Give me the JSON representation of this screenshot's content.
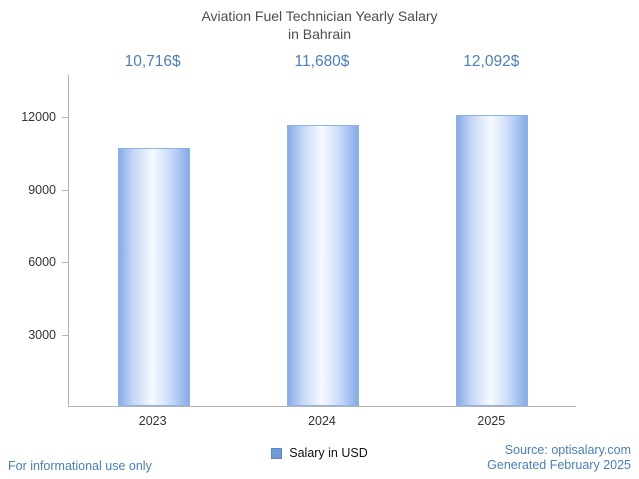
{
  "title": {
    "line1": "Aviation Fuel Technician Yearly Salary",
    "line2": "in Bahrain"
  },
  "chart_data": {
    "type": "bar",
    "title": "Aviation Fuel Technician Yearly Salary in Bahrain",
    "categories": [
      "2023",
      "2024",
      "2025"
    ],
    "values": [
      10716,
      11680,
      12092
    ],
    "value_labels": [
      "10,716$",
      "11,680$",
      "12,092$"
    ],
    "series_name": "Salary in USD",
    "xlabel": "",
    "ylabel": "",
    "ylim": [
      0,
      13750
    ],
    "yticks": [
      3000,
      6000,
      9000,
      12000
    ],
    "grid": false,
    "legend_position": "bottom"
  },
  "legend": {
    "label": "Salary in USD"
  },
  "footer": {
    "left": "For informational use only",
    "source": "Source: optisalary.com",
    "generated": "Generated February 2025"
  },
  "colors": {
    "accent_text": "#4a7fc1",
    "bar_edge": "#85abe6",
    "bar_center": "#f7faff",
    "legend_square": "#6e9ad9",
    "axis": "#b3b3b3",
    "title_text": "#4d4d4d"
  }
}
